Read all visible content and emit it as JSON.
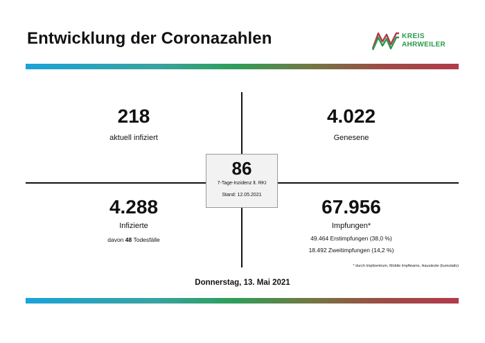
{
  "header": {
    "title": "Entwicklung der Coronazahlen",
    "logo": {
      "line1": "KREIS",
      "line2": "AHRWEILER",
      "icon": "kreis-ahrweiler-logo-icon"
    }
  },
  "colors": {
    "band_start": "#1aa3d9",
    "band_mid": "#2e9e5a",
    "band_end": "#b23a4a",
    "logo_green": "#2a9a4a",
    "logo_red": "#b23a4a"
  },
  "stats": {
    "active": {
      "value": "218",
      "label": "aktuell infiziert"
    },
    "recovered": {
      "value": "4.022",
      "label": "Genesene"
    },
    "infected": {
      "value": "4.288",
      "label": "Infizierte",
      "deaths_prefix": "davon",
      "deaths_value": "48",
      "deaths_suffix": "Todesfälle"
    },
    "vaccinations": {
      "value": "67.956",
      "label": "Impfungen*",
      "first": "49.464 Erstimpfungen (38,0 %)",
      "second": "18.492 Zweitimpfungen (14,2 %)",
      "footnote": "* durch Impfzentrum, Mobile Impfteams, Hausärzte (kumulativ)"
    }
  },
  "incidence": {
    "value": "86",
    "label": "7-Tage-Inzidenz lt. RKI",
    "date": "Stand: 12.05.2021"
  },
  "footer": {
    "date": "Donnerstag, 13. Mai 2021"
  }
}
